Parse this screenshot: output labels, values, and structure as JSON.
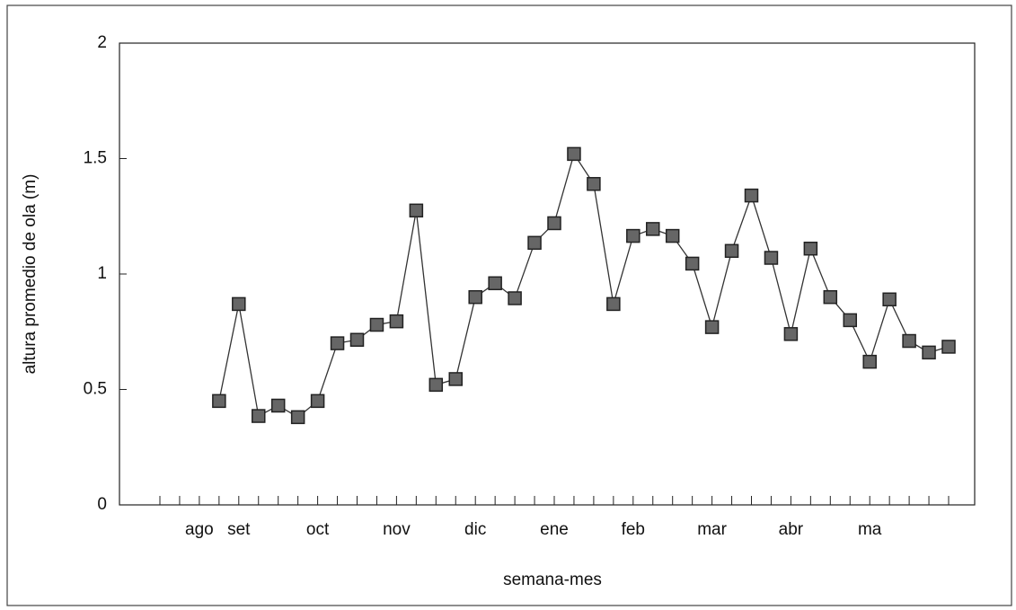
{
  "chart_data": {
    "type": "line",
    "xlabel": "semana-mes",
    "ylabel": "altura promedio de ola (m)",
    "categories": [
      null,
      null,
      "ago",
      null,
      "set",
      null,
      null,
      null,
      "oct",
      null,
      null,
      null,
      "nov",
      null,
      null,
      null,
      "dic",
      null,
      null,
      null,
      "ene",
      null,
      null,
      null,
      "feb",
      null,
      null,
      null,
      "mar",
      null,
      null,
      null,
      "abr",
      null,
      null,
      null,
      "ma",
      null,
      null,
      null,
      null
    ],
    "series": [
      {
        "color": "#333333",
        "values": [
          null,
          null,
          null,
          0.45,
          0.87,
          0.385,
          0.43,
          0.38,
          0.45,
          0.7,
          0.715,
          0.78,
          0.795,
          1.275,
          0.52,
          0.545,
          0.9,
          0.96,
          0.895,
          1.135,
          1.22,
          1.52,
          1.39,
          0.87,
          1.165,
          1.195,
          1.165,
          1.045,
          0.77,
          1.1,
          1.34,
          1.07,
          0.74,
          1.11,
          0.9,
          0.8,
          0.62,
          0.89,
          0.71,
          0.66,
          0.685
        ]
      }
    ],
    "ylim": [
      0,
      2
    ],
    "yticks": [
      0,
      0.5,
      1,
      1.5,
      2
    ],
    "grid": false
  }
}
